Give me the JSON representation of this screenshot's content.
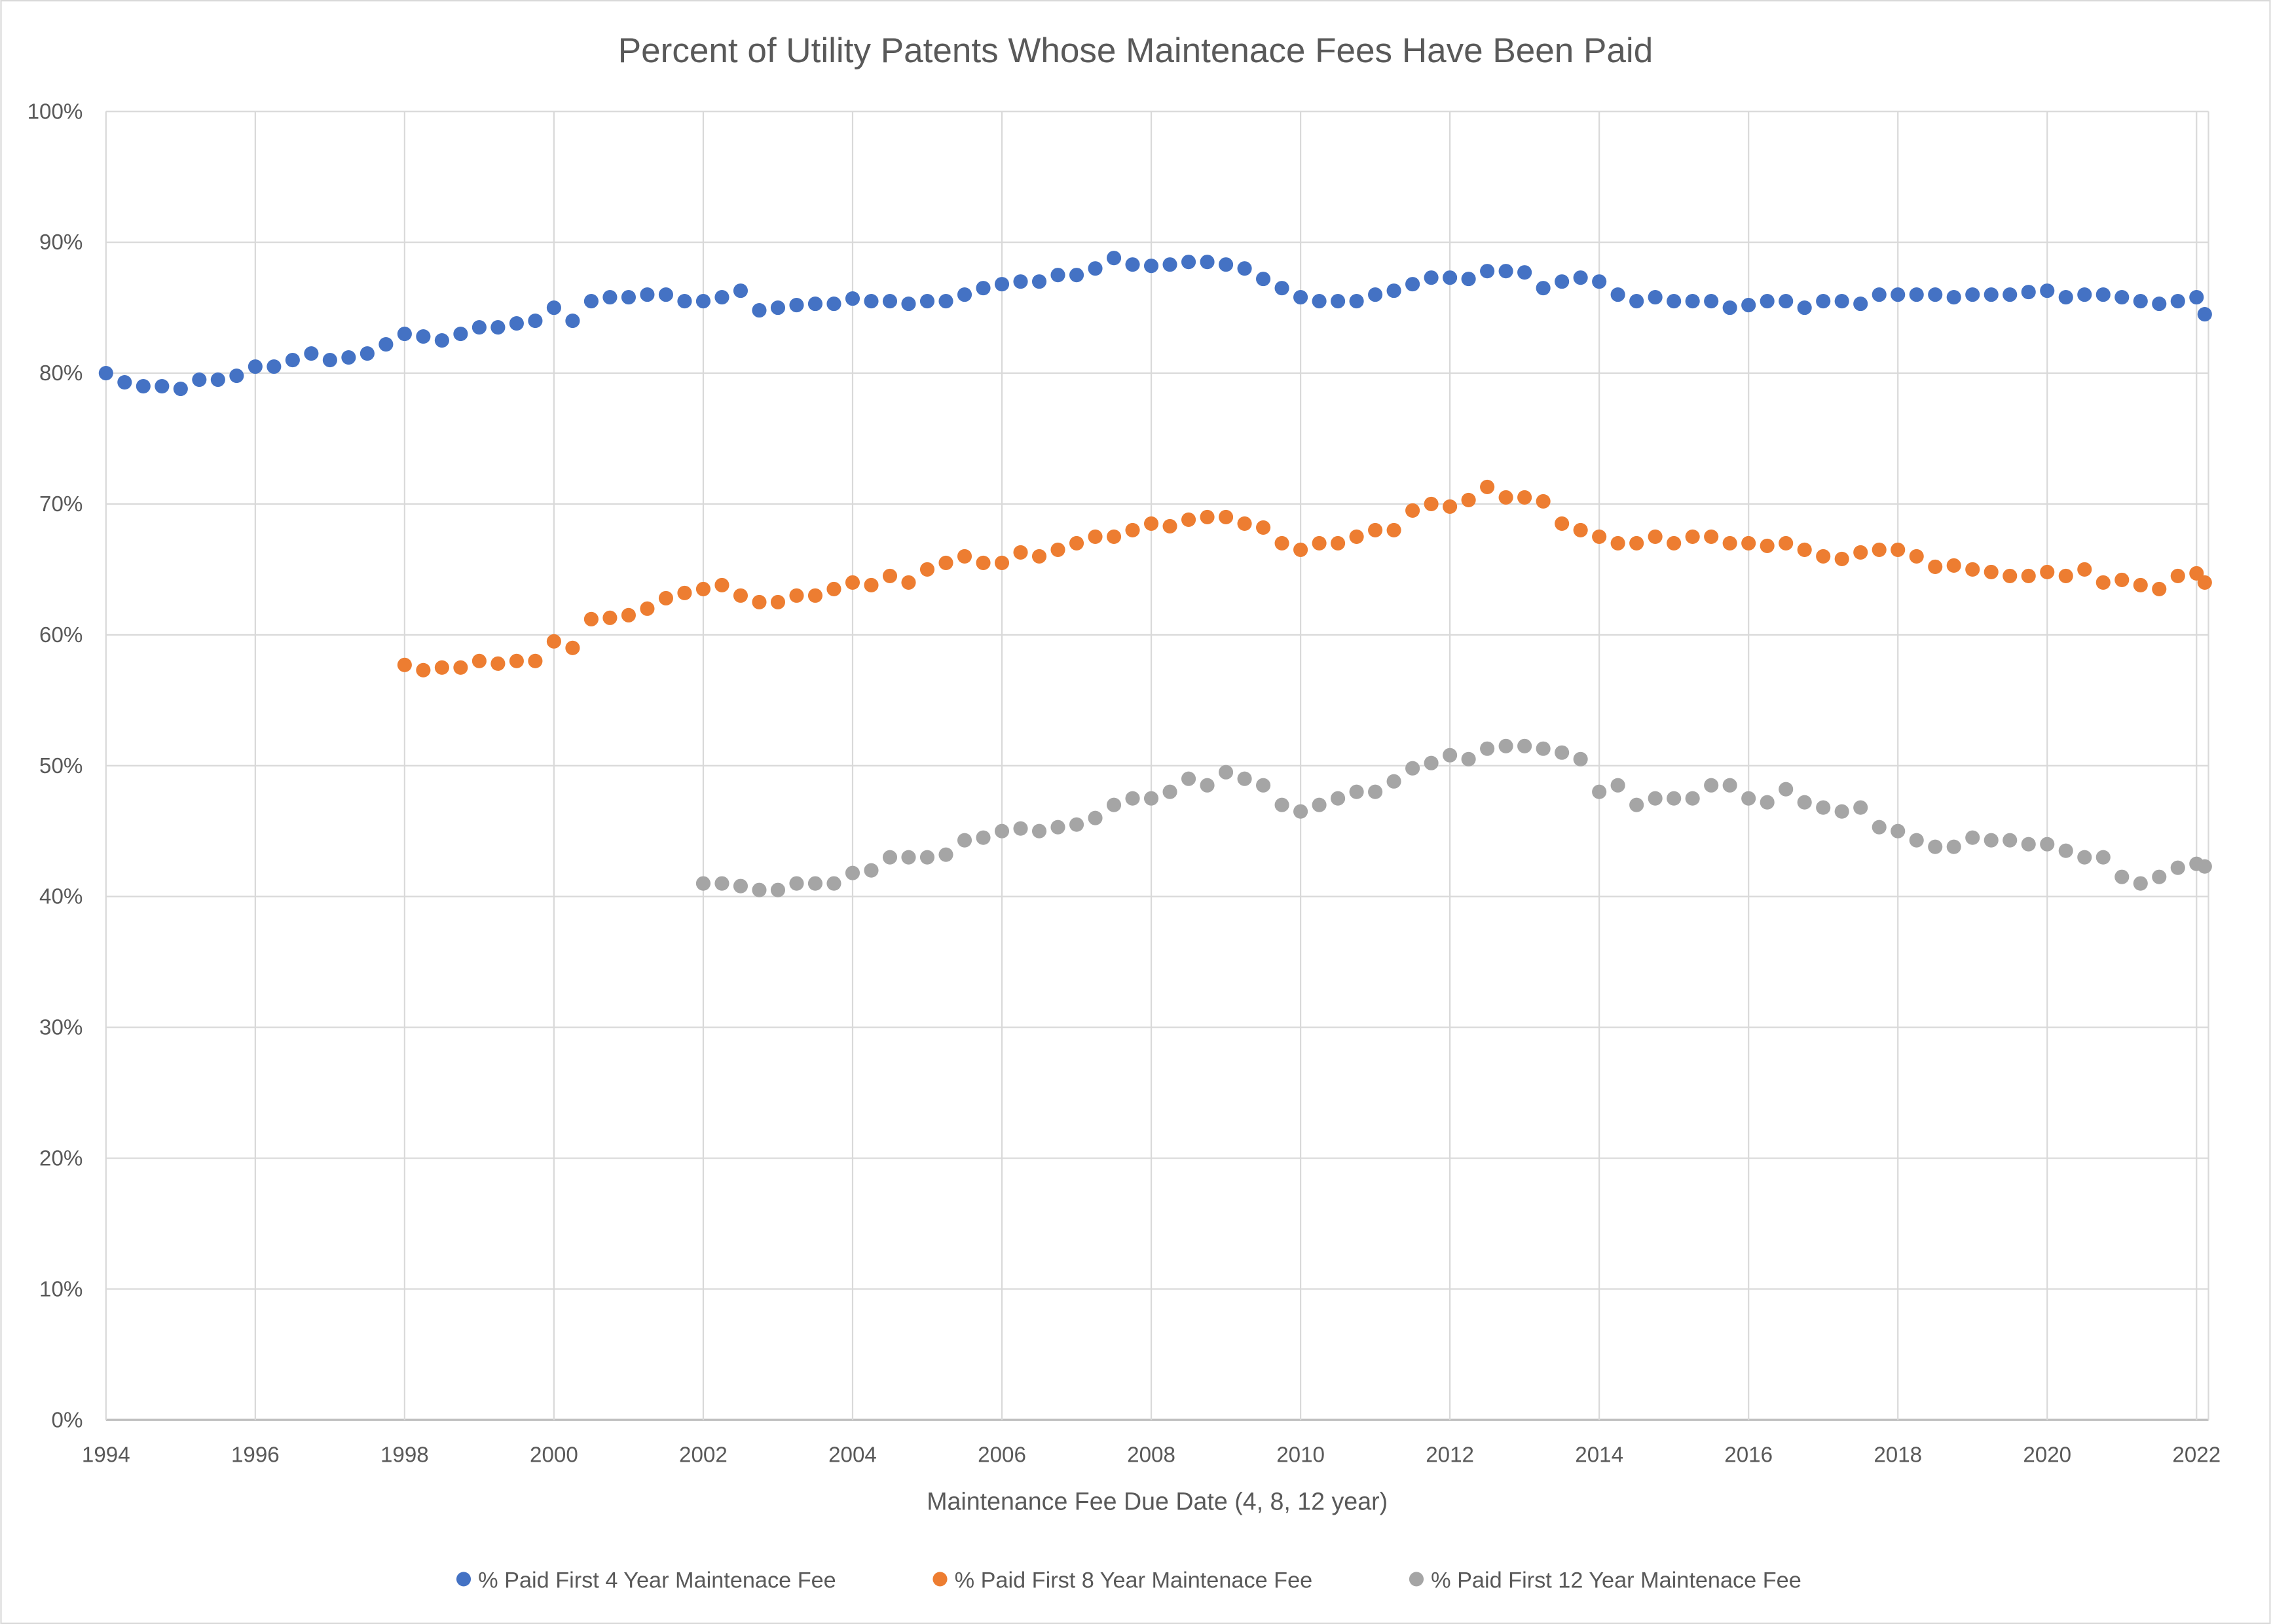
{
  "chart_data": {
    "type": "scatter",
    "title": "Percent of Utility Patents Whose Maintenace Fees Have Been Paid",
    "xlabel": "Maintenance Fee Due Date (4, 8, 12 year)",
    "ylabel": "",
    "xlim": [
      1994,
      2022.16
    ],
    "ylim": [
      0,
      100
    ],
    "x_ticks": [
      "1994",
      "1996",
      "1998",
      "2000",
      "2002",
      "2004",
      "2006",
      "2008",
      "2010",
      "2012",
      "2014",
      "2016",
      "2018",
      "2020",
      "2022"
    ],
    "y_ticks": [
      "0%",
      "10%",
      "20%",
      "30%",
      "40%",
      "50%",
      "60%",
      "70%",
      "80%",
      "90%",
      "100%"
    ],
    "grid": true,
    "legend_position": "bottom",
    "series": [
      {
        "name": "% Paid First 4 Year Maintenace Fee",
        "color": "#4472C4",
        "x_start": 1994.0,
        "x_step": 0.25,
        "values": [
          80,
          79.3,
          79,
          79,
          78.8,
          79.5,
          79.5,
          79.8,
          80.5,
          80.5,
          81,
          81.5,
          81,
          81.2,
          81.5,
          82.2,
          83,
          82.8,
          82.5,
          83,
          83.5,
          83.5,
          83.8,
          84,
          85,
          84,
          85.5,
          85.8,
          85.8,
          86,
          86,
          85.5,
          85.5,
          85.8,
          86.3,
          84.8,
          85,
          85.2,
          85.3,
          85.3,
          85.7,
          85.5,
          85.5,
          85.3,
          85.5,
          85.5,
          86,
          86.5,
          86.8,
          87,
          87,
          87.5,
          87.5,
          88,
          88.8,
          88.3,
          88.2,
          88.3,
          88.5,
          88.5,
          88.3,
          88,
          87.2,
          86.5,
          85.8,
          85.5,
          85.5,
          85.5,
          86,
          86.3,
          86.8,
          87.3,
          87.3,
          87.2,
          87.8,
          87.8,
          87.7,
          86.5,
          87,
          87.3,
          87,
          86,
          85.5,
          85.8,
          85.5,
          85.5,
          85.5,
          85,
          85.2,
          85.5,
          85.5,
          85,
          85.5,
          85.5,
          85.3,
          86,
          86,
          86,
          86,
          85.8,
          86,
          86,
          86,
          86.2,
          86.3,
          85.8,
          86,
          86,
          85.8,
          85.5,
          85.3,
          85.5,
          85.8,
          84.5
        ]
      },
      {
        "name": "% Paid First 8 Year Maintenace Fee",
        "color": "#ED7D31",
        "x_start": 1998.0,
        "x_step": 0.25,
        "values": [
          57.7,
          57.3,
          57.5,
          57.5,
          58,
          57.8,
          58,
          58,
          59.5,
          59,
          61.2,
          61.3,
          61.5,
          62,
          62.8,
          63.2,
          63.5,
          63.8,
          63,
          62.5,
          62.5,
          63,
          63,
          63.5,
          64,
          63.8,
          64.5,
          64,
          65,
          65.5,
          66,
          65.5,
          65.5,
          66.3,
          66,
          66.5,
          67,
          67.5,
          67.5,
          68,
          68.5,
          68.3,
          68.8,
          69,
          69,
          68.5,
          68.2,
          67,
          66.5,
          67,
          67,
          67.5,
          68,
          68,
          69.5,
          70,
          69.8,
          70.3,
          71.3,
          70.5,
          70.5,
          70.2,
          68.5,
          68,
          67.5,
          67,
          67,
          67.5,
          67,
          67.5,
          67.5,
          67,
          67,
          66.8,
          67,
          66.5,
          66,
          65.8,
          66.3,
          66.5,
          66.5,
          66,
          65.2,
          65.3,
          65,
          64.8,
          64.5,
          64.5,
          64.8,
          64.5,
          65,
          64,
          64.2,
          63.8,
          63.5,
          64.5,
          64.7,
          64
        ]
      },
      {
        "name": "% Paid First 12 Year Maintenace Fee",
        "color": "#A5A5A5",
        "x_start": 2002.0,
        "x_step": 0.25,
        "values": [
          41,
          41,
          40.8,
          40.5,
          40.5,
          41,
          41,
          41,
          41.8,
          42,
          43,
          43,
          43,
          43.2,
          44.3,
          44.5,
          45,
          45.2,
          45,
          45.3,
          45.5,
          46,
          47,
          47.5,
          47.5,
          48,
          49,
          48.5,
          49.5,
          49,
          48.5,
          47,
          46.5,
          47,
          47.5,
          48,
          48,
          48.8,
          49.8,
          50.2,
          50.8,
          50.5,
          51.3,
          51.5,
          51.5,
          51.3,
          51,
          50.5,
          48,
          48.5,
          47,
          47.5,
          47.5,
          47.5,
          48.5,
          48.5,
          47.5,
          47.2,
          48.2,
          47.2,
          46.8,
          46.5,
          46.8,
          45.3,
          45,
          44.3,
          43.8,
          43.8,
          44.5,
          44.3,
          44.3,
          44,
          44,
          43.5,
          43,
          43,
          41.5,
          41,
          41.5,
          42.2,
          42.5,
          42.3
        ]
      }
    ]
  }
}
